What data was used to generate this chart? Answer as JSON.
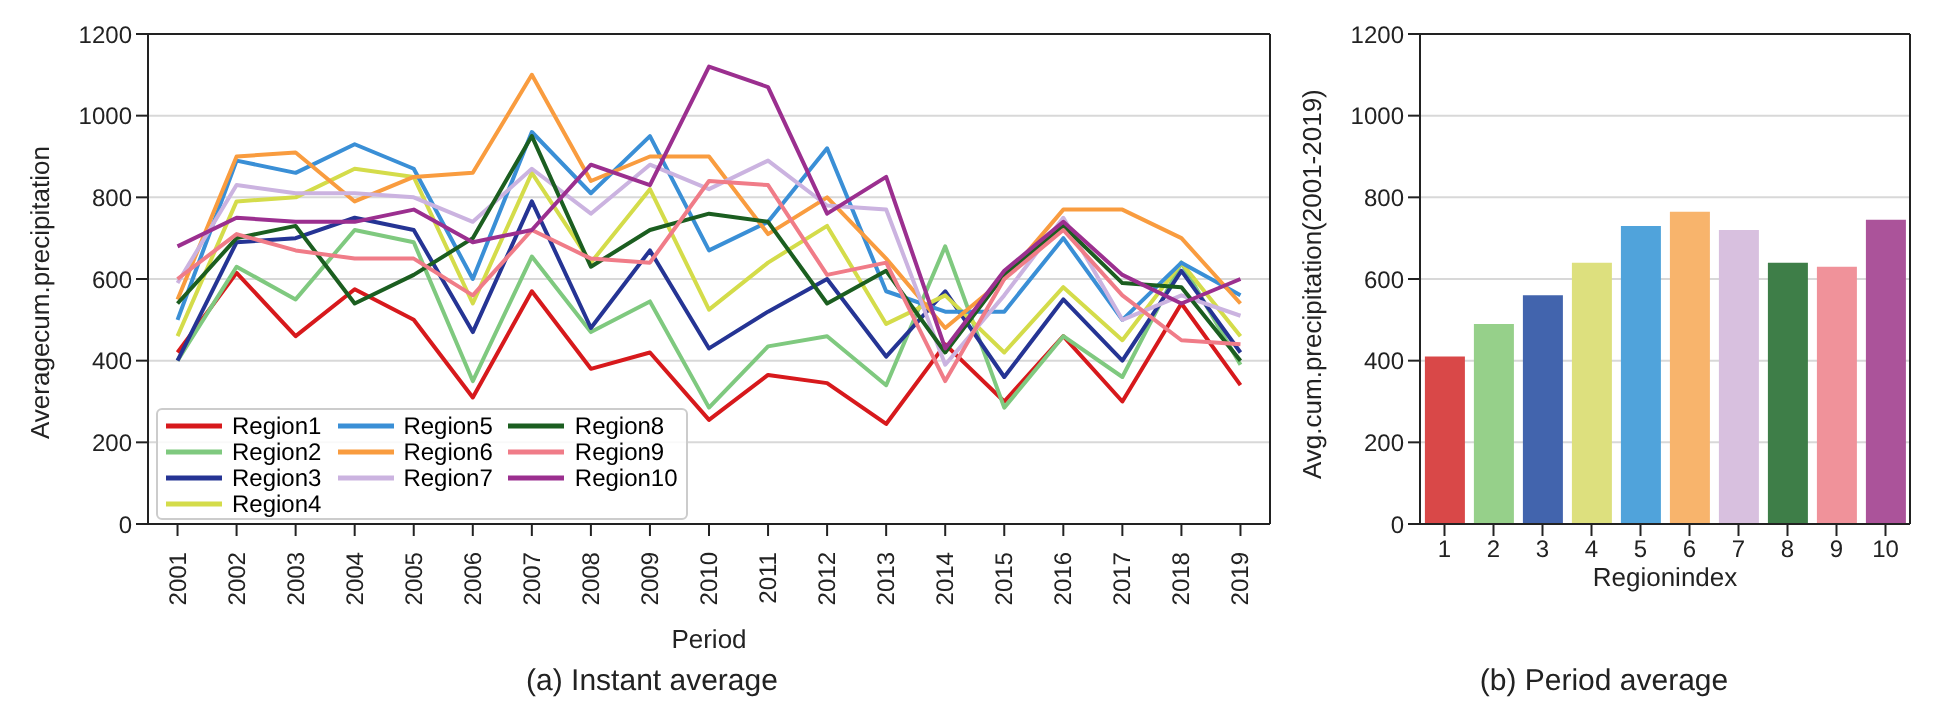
{
  "chart_data": [
    {
      "type": "line",
      "title": "(a) Instant average",
      "xlabel": "Period",
      "ylabel": "Averagecum.precipitation",
      "categories": [
        "2001",
        "2002",
        "2003",
        "2004",
        "2005",
        "2006",
        "2007",
        "2008",
        "2009",
        "2010",
        "2011",
        "2012",
        "2013",
        "2014",
        "2015",
        "2016",
        "2017",
        "2018",
        "2019"
      ],
      "ylim": [
        0,
        1200
      ],
      "yticks": [
        0,
        200,
        400,
        600,
        800,
        1000,
        1200
      ],
      "grid": "y",
      "legend": "bottom left",
      "marker": "none",
      "line_style": "solid",
      "series": [
        {
          "name": "Region1",
          "color": "#d7191c",
          "values": [
            420,
            615,
            460,
            575,
            500,
            310,
            570,
            380,
            420,
            255,
            365,
            345,
            245,
            440,
            300,
            460,
            300,
            540,
            340
          ]
        },
        {
          "name": "Region2",
          "color": "#7fc97f",
          "values": [
            400,
            630,
            550,
            720,
            690,
            350,
            655,
            470,
            545,
            285,
            435,
            460,
            340,
            680,
            285,
            460,
            360,
            640,
            390
          ]
        },
        {
          "name": "Region3",
          "color": "#253494",
          "values": [
            400,
            690,
            700,
            750,
            720,
            470,
            790,
            480,
            670,
            430,
            520,
            600,
            410,
            570,
            360,
            550,
            400,
            620,
            420
          ]
        },
        {
          "name": "Region4",
          "color": "#d4dc4a",
          "values": [
            460,
            790,
            800,
            870,
            850,
            540,
            860,
            640,
            820,
            525,
            640,
            730,
            490,
            560,
            420,
            580,
            450,
            640,
            460
          ]
        },
        {
          "name": "Region5",
          "color": "#3a8fd6",
          "values": [
            500,
            890,
            860,
            930,
            870,
            600,
            960,
            810,
            950,
            670,
            740,
            920,
            570,
            520,
            520,
            700,
            500,
            640,
            560
          ]
        },
        {
          "name": "Region6",
          "color": "#f99c3f",
          "values": [
            550,
            900,
            910,
            790,
            850,
            860,
            1100,
            840,
            900,
            900,
            710,
            800,
            650,
            480,
            600,
            770,
            770,
            700,
            540
          ]
        },
        {
          "name": "Region7",
          "color": "#cbb3e0",
          "values": [
            590,
            830,
            810,
            810,
            800,
            740,
            870,
            760,
            880,
            820,
            890,
            780,
            770,
            390,
            560,
            750,
            500,
            560,
            510
          ]
        },
        {
          "name": "Region8",
          "color": "#1b5e20",
          "values": [
            540,
            700,
            730,
            540,
            610,
            700,
            950,
            630,
            720,
            760,
            740,
            540,
            620,
            420,
            610,
            730,
            590,
            580,
            400
          ]
        },
        {
          "name": "Region9",
          "color": "#f07c88",
          "values": [
            600,
            710,
            670,
            650,
            650,
            560,
            720,
            650,
            640,
            840,
            830,
            610,
            640,
            350,
            600,
            720,
            560,
            450,
            440
          ]
        },
        {
          "name": "Region10",
          "color": "#9b2f8f",
          "values": [
            680,
            750,
            740,
            740,
            770,
            690,
            720,
            880,
            830,
            1120,
            1070,
            760,
            850,
            430,
            620,
            740,
            610,
            540,
            600
          ]
        }
      ]
    },
    {
      "type": "bar",
      "title": "(b) Period average",
      "xlabel": "Regionindex",
      "ylabel": "Avg.cum.precipitation(2001-2019)",
      "categories": [
        "1",
        "2",
        "3",
        "4",
        "5",
        "6",
        "7",
        "8",
        "9",
        "10"
      ],
      "values": [
        410,
        490,
        560,
        640,
        730,
        765,
        720,
        640,
        630,
        745
      ],
      "colors": [
        "#d94848",
        "#96d08a",
        "#4264ad",
        "#dde07e",
        "#50a3db",
        "#f8b46c",
        "#d8c0df",
        "#3e7e48",
        "#f0929a",
        "#ab539a"
      ],
      "ylim": [
        0,
        1200
      ],
      "yticks": [
        0,
        200,
        400,
        600,
        800,
        1000,
        1200
      ],
      "grid": "y"
    }
  ]
}
